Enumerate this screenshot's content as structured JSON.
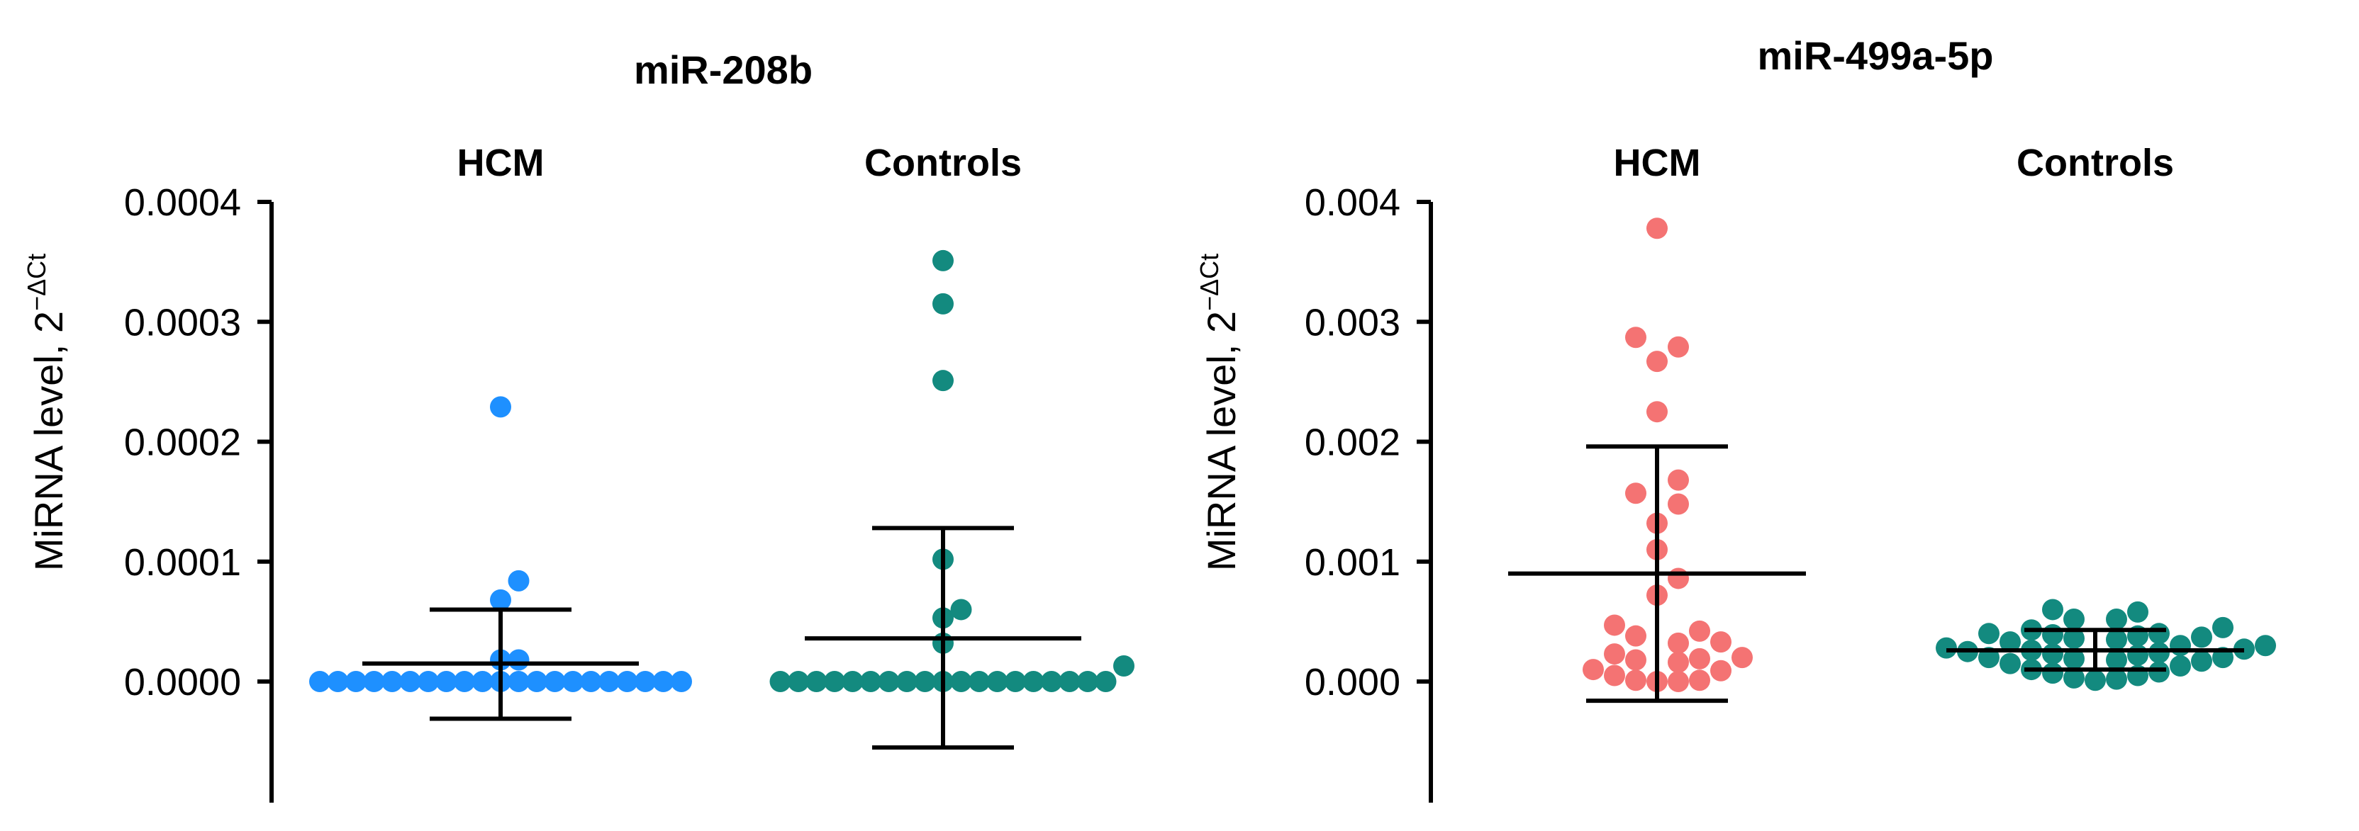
{
  "figure": {
    "panels": [
      {
        "title": "miR-208b",
        "ylabel": "MiRNA level, 2",
        "ylabel_sup": "−ΔCt"
      },
      {
        "title": "miR-499a-5p",
        "ylabel": "MiRNA level, 2",
        "ylabel_sup": "−ΔCt"
      }
    ]
  },
  "chart_data": [
    {
      "type": "scatter",
      "title": "miR-208b",
      "xlabel": "",
      "ylabel": "MiRNA level, 2^−ΔCt",
      "categories": [
        "HCM",
        "Controls"
      ],
      "ylim": [
        -0.0001,
        0.0004
      ],
      "yticks": [
        0.0,
        0.0001,
        0.0002,
        0.0003,
        0.0004
      ],
      "ytick_labels": [
        "0.0000",
        "0.0001",
        "0.0002",
        "0.0003",
        "0.0004"
      ],
      "grid": false,
      "colors": [
        "#1e90ff",
        "#138a7f"
      ],
      "series": [
        {
          "name": "HCM",
          "values": [
            0.000229,
            8.4e-05,
            6.8e-05,
            1.8e-05,
            1.8e-05,
            0.0,
            0.0,
            0.0,
            0.0,
            0.0,
            0.0,
            0.0,
            0.0,
            0.0,
            0.0,
            0.0,
            0.0,
            0.0,
            0.0,
            0.0,
            0.0,
            0.0,
            0.0,
            0.0,
            0.0,
            0.0
          ],
          "mean": 1.5e-05,
          "sd_upper": 6e-05,
          "sd_lower": -3.1e-05
        },
        {
          "name": "Controls",
          "values": [
            0.000351,
            0.000315,
            0.000251,
            0.000102,
            6e-05,
            5.3e-05,
            3.2e-05,
            1.3e-05,
            0.0,
            0.0,
            0.0,
            0.0,
            0.0,
            0.0,
            0.0,
            0.0,
            0.0,
            0.0,
            0.0,
            0.0,
            0.0,
            0.0,
            0.0,
            0.0,
            0.0,
            0.0,
            0.0
          ],
          "mean": 3.6e-05,
          "sd_upper": 0.000128,
          "sd_lower": -5.5e-05
        }
      ]
    },
    {
      "type": "scatter",
      "title": "miR-499a-5p",
      "xlabel": "",
      "ylabel": "MiRNA level, 2^−ΔCt",
      "categories": [
        "HCM",
        "Controls"
      ],
      "ylim": [
        -0.001,
        0.004
      ],
      "yticks": [
        0.0,
        0.001,
        0.002,
        0.003,
        0.004
      ],
      "ytick_labels": [
        "0.000",
        "0.001",
        "0.002",
        "0.003",
        "0.004"
      ],
      "grid": false,
      "colors": [
        "#f47373",
        "#138a7f"
      ],
      "series": [
        {
          "name": "HCM",
          "values": [
            0.00378,
            0.00287,
            0.00279,
            0.00267,
            0.00225,
            0.00168,
            0.00157,
            0.00148,
            0.00132,
            0.0011,
            0.00086,
            0.00072,
            0.00047,
            0.00042,
            0.00038,
            0.00033,
            0.00032,
            0.00023,
            0.0002,
            0.00019,
            0.00018,
            0.00016,
            0.0001,
            9e-05,
            5e-05,
            1e-05,
            1e-05,
            0.0,
            0.0
          ],
          "mean": 0.0009,
          "sd_upper": 0.00196,
          "sd_lower": -0.00016
        },
        {
          "name": "Controls",
          "values": [
            0.0006,
            0.00058,
            0.00052,
            0.00052,
            0.00045,
            0.00043,
            0.0004,
            0.0004,
            0.00039,
            0.00038,
            0.00037,
            0.00036,
            0.00035,
            0.00033,
            0.0003,
            0.0003,
            0.00028,
            0.00027,
            0.00026,
            0.00025,
            0.00024,
            0.00023,
            0.00022,
            0.0002,
            0.0002,
            0.00019,
            0.00018,
            0.00017,
            0.00015,
            0.00013,
            0.0001,
            8e-05,
            7e-05,
            5e-05,
            3e-05,
            2e-05,
            1e-05
          ],
          "mean": 0.00026,
          "sd_upper": 0.00043,
          "sd_lower": 0.0001
        }
      ]
    }
  ]
}
